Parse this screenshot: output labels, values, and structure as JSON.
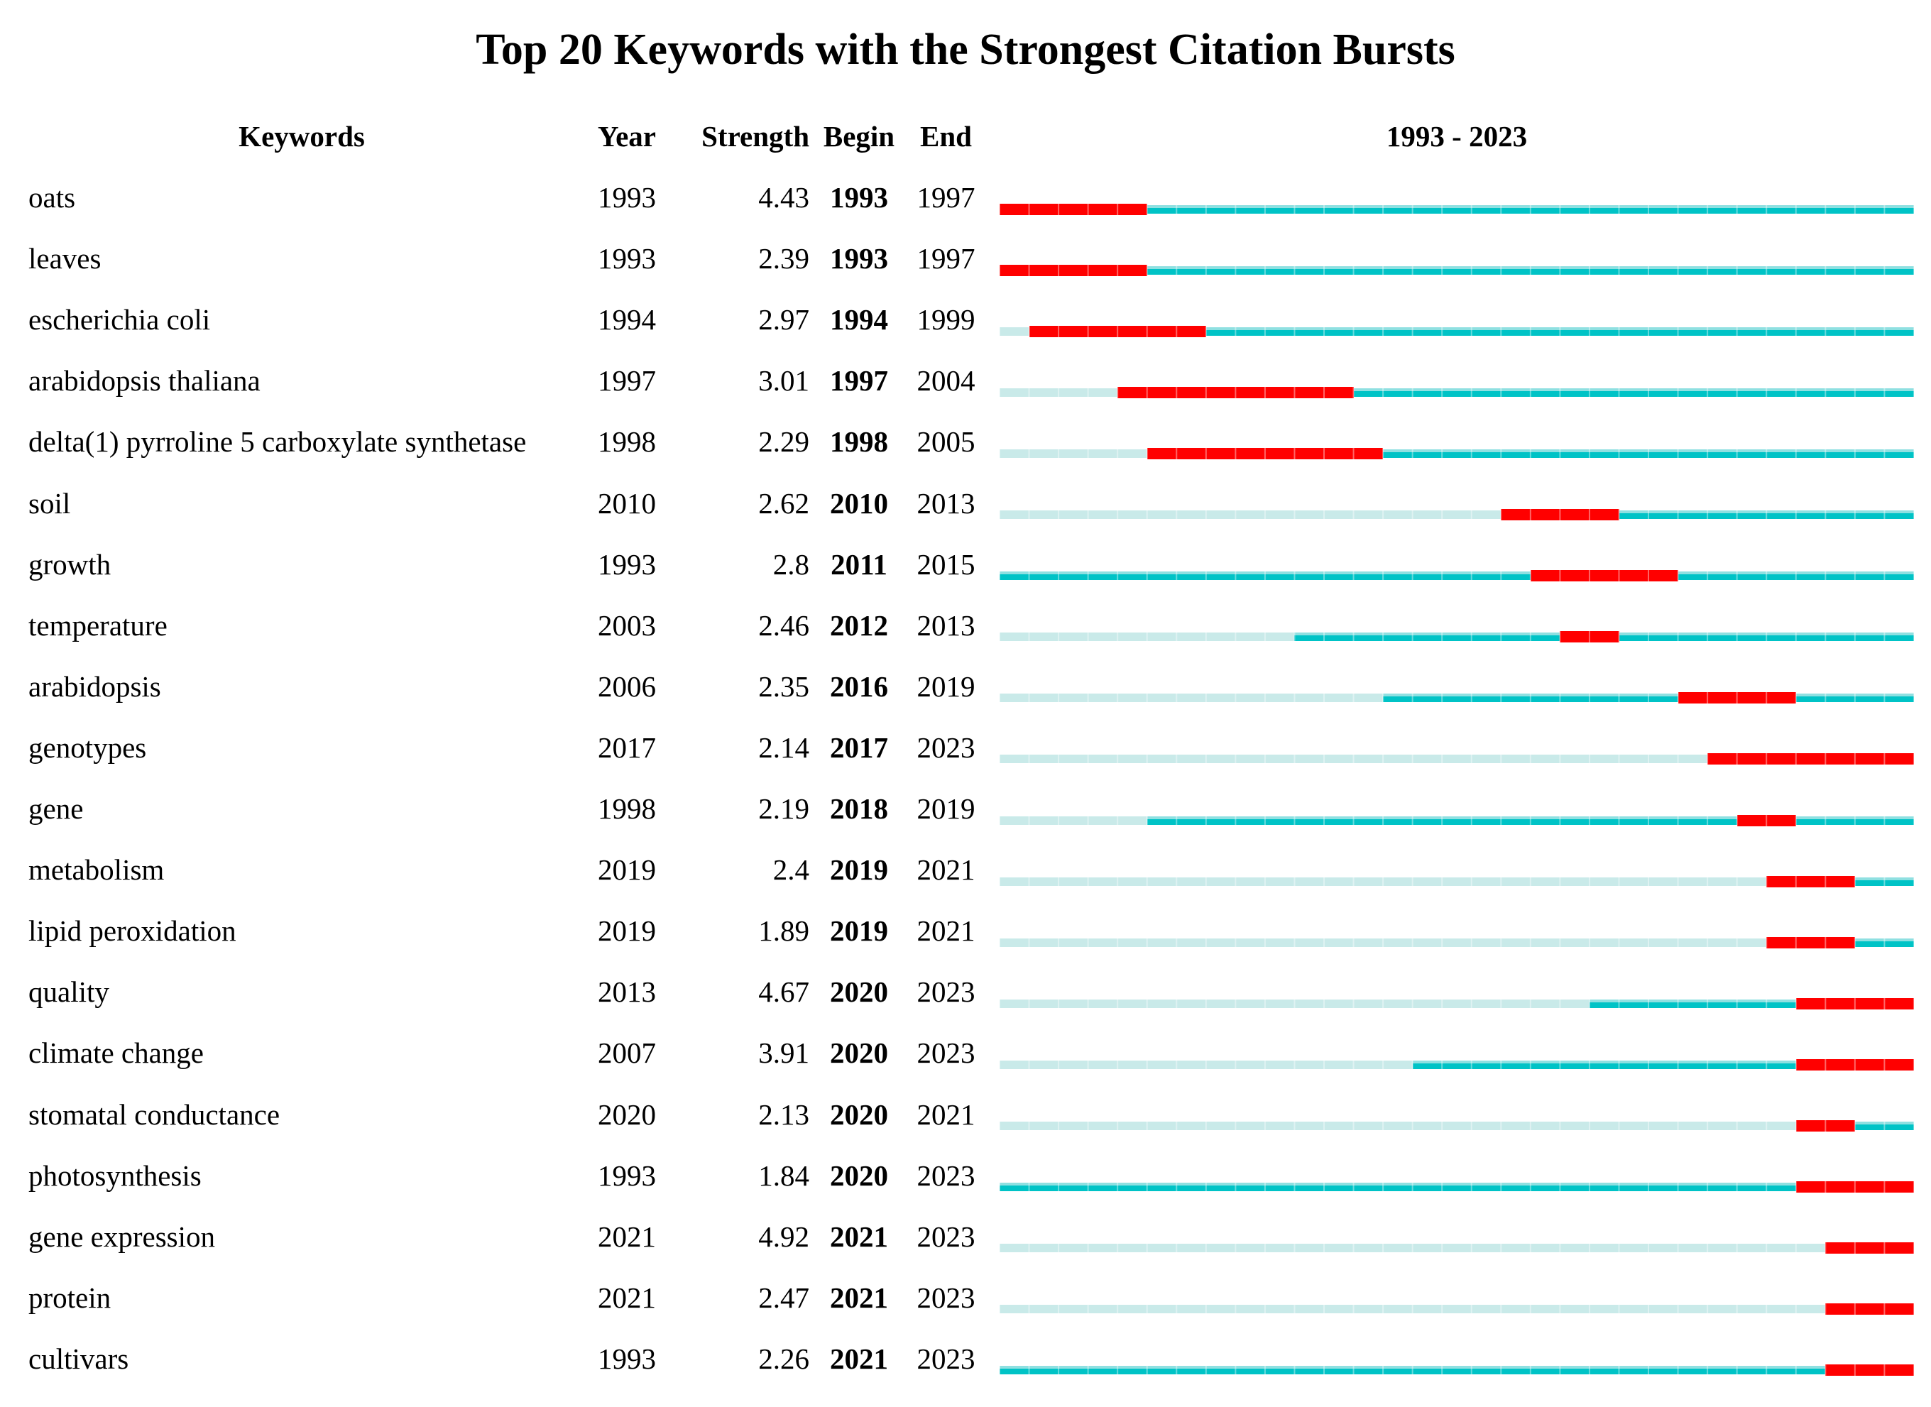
{
  "title": "Top 20 Keywords with the Strongest Citation Bursts",
  "header": {
    "keywords": "Keywords",
    "year": "Year",
    "strength": "Strength",
    "begin": "Begin",
    "end": "End",
    "range": "1993 - 2023"
  },
  "colors": {
    "burst": "#ff0000",
    "active": "#00c3c6",
    "active_top": "#8fe0e1",
    "inactive": "#c9eae9"
  },
  "chart_data": {
    "type": "table",
    "title": "Top 20 Keywords with the Strongest Citation Bursts",
    "columns": [
      "Keywords",
      "Year",
      "Strength",
      "Begin",
      "End"
    ],
    "range_label": "1993 - 2023",
    "axis_start": 1993,
    "axis_end": 2023,
    "bar_encoding": {
      "inactive": "years before keyword first appears (pale cyan)",
      "active": "years keyword is present, no burst (teal)",
      "burst": "burst period from Begin to End (red)"
    },
    "rows": [
      {
        "keyword": "oats",
        "year": "1993",
        "strength": "4.43",
        "begin": "1993",
        "end": "1997"
      },
      {
        "keyword": "leaves",
        "year": "1993",
        "strength": "2.39",
        "begin": "1993",
        "end": "1997"
      },
      {
        "keyword": "escherichia coli",
        "year": "1994",
        "strength": "2.97",
        "begin": "1994",
        "end": "1999"
      },
      {
        "keyword": "arabidopsis thaliana",
        "year": "1997",
        "strength": "3.01",
        "begin": "1997",
        "end": "2004"
      },
      {
        "keyword": "delta(1) pyrroline 5 carboxylate synthetase",
        "year": "1998",
        "strength": "2.29",
        "begin": "1998",
        "end": "2005"
      },
      {
        "keyword": "soil",
        "year": "2010",
        "strength": "2.62",
        "begin": "2010",
        "end": "2013"
      },
      {
        "keyword": "growth",
        "year": "1993",
        "strength": "2.8",
        "begin": "2011",
        "end": "2015"
      },
      {
        "keyword": "temperature",
        "year": "2003",
        "strength": "2.46",
        "begin": "2012",
        "end": "2013"
      },
      {
        "keyword": "arabidopsis",
        "year": "2006",
        "strength": "2.35",
        "begin": "2016",
        "end": "2019"
      },
      {
        "keyword": "genotypes",
        "year": "2017",
        "strength": "2.14",
        "begin": "2017",
        "end": "2023"
      },
      {
        "keyword": "gene",
        "year": "1998",
        "strength": "2.19",
        "begin": "2018",
        "end": "2019"
      },
      {
        "keyword": "metabolism",
        "year": "2019",
        "strength": "2.4",
        "begin": "2019",
        "end": "2021"
      },
      {
        "keyword": "lipid peroxidation",
        "year": "2019",
        "strength": "1.89",
        "begin": "2019",
        "end": "2021"
      },
      {
        "keyword": "quality",
        "year": "2013",
        "strength": "4.67",
        "begin": "2020",
        "end": "2023"
      },
      {
        "keyword": "climate change",
        "year": "2007",
        "strength": "3.91",
        "begin": "2020",
        "end": "2023"
      },
      {
        "keyword": "stomatal conductance",
        "year": "2020",
        "strength": "2.13",
        "begin": "2020",
        "end": "2021"
      },
      {
        "keyword": "photosynthesis",
        "year": "1993",
        "strength": "1.84",
        "begin": "2020",
        "end": "2023"
      },
      {
        "keyword": "gene expression",
        "year": "2021",
        "strength": "4.92",
        "begin": "2021",
        "end": "2023"
      },
      {
        "keyword": "protein",
        "year": "2021",
        "strength": "2.47",
        "begin": "2021",
        "end": "2023"
      },
      {
        "keyword": "cultivars",
        "year": "1993",
        "strength": "2.26",
        "begin": "2021",
        "end": "2023"
      }
    ]
  }
}
